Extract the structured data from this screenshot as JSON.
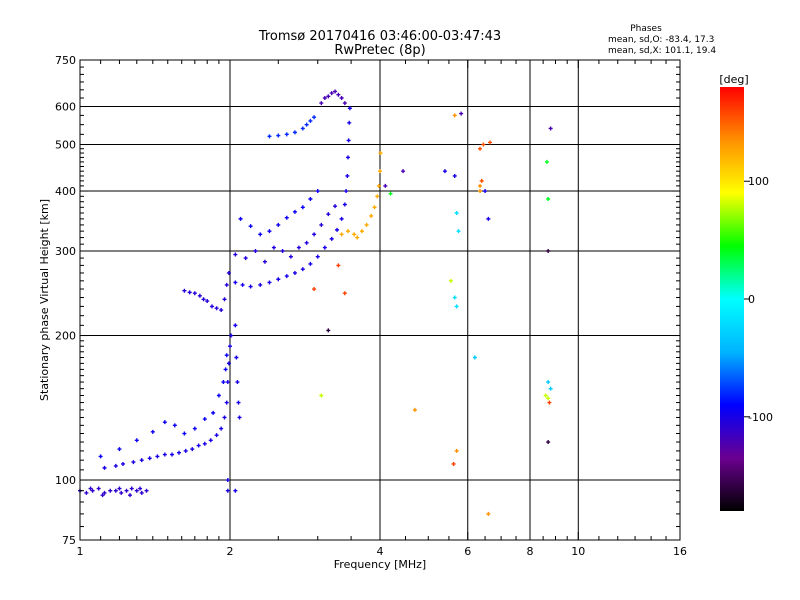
{
  "chart_data": {
    "type": "scatter",
    "title": "Tromsø 20170416 03:46:00-03:47:43",
    "subtitle": "RwPretec (8p)",
    "xlabel": "Frequency [MHz]",
    "ylabel": "Stationary phase Virtual Height [km]",
    "x_scale": "log",
    "y_scale": "log",
    "xlim": [
      1,
      16
    ],
    "ylim": [
      75,
      750
    ],
    "x_ticks": [
      1,
      2,
      4,
      6,
      8,
      10,
      16
    ],
    "x_tick_labels": [
      "1",
      "2",
      "4",
      "6",
      "8",
      "10",
      "16"
    ],
    "y_ticks": [
      75,
      100,
      200,
      300,
      400,
      500,
      600,
      750
    ],
    "y_tick_labels": [
      "75",
      "100",
      "200",
      "300",
      "400",
      "500",
      "600",
      "750"
    ],
    "grid": true,
    "stats": {
      "heading": "Phases",
      "line1": "mean, sd,O: -83.4, 17.3",
      "line2": "mean, sd,X: 101.1, 19.4"
    },
    "colorbar": {
      "label": "[deg]",
      "range": [
        -180,
        180
      ],
      "ticks": [
        100,
        0,
        -100
      ],
      "tick_labels": [
        "100",
        "0",
        "-100"
      ],
      "colors": [
        "#000000",
        "#6a0090",
        "#0000ff",
        "#00b4ff",
        "#00ffff",
        "#00ff00",
        "#ffff00",
        "#ff9000",
        "#ff0000"
      ]
    },
    "series": [
      {
        "phase": -110,
        "points": [
          [
            1.0,
            95
          ],
          [
            1.03,
            94
          ],
          [
            1.06,
            95
          ],
          [
            1.09,
            96
          ],
          [
            1.12,
            94
          ],
          [
            1.15,
            95
          ],
          [
            1.18,
            95
          ],
          [
            1.21,
            94
          ],
          [
            1.24,
            95
          ],
          [
            1.27,
            96
          ],
          [
            1.3,
            95
          ],
          [
            1.33,
            94
          ],
          [
            1.36,
            95
          ],
          [
            1.05,
            96
          ],
          [
            1.11,
            93
          ],
          [
            1.2,
            96
          ],
          [
            1.26,
            93
          ],
          [
            1.32,
            96
          ]
        ]
      },
      {
        "phase": -100,
        "points": [
          [
            1.12,
            106
          ],
          [
            1.18,
            107
          ],
          [
            1.22,
            108
          ],
          [
            1.28,
            109
          ],
          [
            1.33,
            110
          ],
          [
            1.38,
            111
          ],
          [
            1.43,
            112
          ],
          [
            1.48,
            113
          ],
          [
            1.53,
            113
          ],
          [
            1.58,
            114
          ],
          [
            1.63,
            115
          ],
          [
            1.68,
            116
          ],
          [
            1.73,
            118
          ],
          [
            1.78,
            119
          ],
          [
            1.83,
            121
          ],
          [
            1.88,
            124
          ],
          [
            1.92,
            128
          ],
          [
            1.95,
            135
          ],
          [
            1.97,
            145
          ],
          [
            1.98,
            160
          ],
          [
            1.99,
            175
          ],
          [
            2.0,
            190
          ],
          [
            2.01,
            200
          ]
        ]
      },
      {
        "phase": -95,
        "points": [
          [
            1.1,
            112
          ],
          [
            1.2,
            116
          ],
          [
            1.3,
            121
          ],
          [
            1.4,
            126
          ],
          [
            1.48,
            132
          ],
          [
            1.55,
            130
          ],
          [
            1.62,
            125
          ],
          [
            1.7,
            128
          ],
          [
            1.78,
            134
          ],
          [
            1.85,
            138
          ],
          [
            1.9,
            150
          ],
          [
            1.94,
            160
          ],
          [
            1.96,
            170
          ],
          [
            1.97,
            182
          ]
        ]
      },
      {
        "phase": -105,
        "points": [
          [
            1.62,
            248
          ],
          [
            1.66,
            246
          ],
          [
            1.7,
            245
          ],
          [
            1.74,
            242
          ],
          [
            1.77,
            238
          ],
          [
            1.8,
            236
          ],
          [
            1.84,
            230
          ],
          [
            1.88,
            228
          ],
          [
            1.92,
            226
          ],
          [
            1.95,
            238
          ],
          [
            1.97,
            255
          ],
          [
            1.99,
            270
          ]
        ]
      },
      {
        "phase": -100,
        "points": [
          [
            2.05,
            258
          ],
          [
            2.12,
            255
          ],
          [
            2.2,
            253
          ],
          [
            2.3,
            255
          ],
          [
            2.4,
            258
          ],
          [
            2.5,
            262
          ],
          [
            2.6,
            266
          ],
          [
            2.7,
            270
          ],
          [
            2.8,
            275
          ],
          [
            2.9,
            282
          ],
          [
            3.0,
            292
          ],
          [
            3.1,
            305
          ],
          [
            3.2,
            318
          ],
          [
            3.28,
            332
          ],
          [
            3.35,
            350
          ],
          [
            3.4,
            375
          ],
          [
            3.42,
            400
          ],
          [
            3.44,
            430
          ],
          [
            3.45,
            470
          ],
          [
            3.46,
            510
          ],
          [
            3.47,
            555
          ],
          [
            3.48,
            595
          ]
        ]
      },
      {
        "phase": -105,
        "points": [
          [
            2.05,
            295
          ],
          [
            2.15,
            290
          ],
          [
            2.25,
            300
          ],
          [
            2.35,
            285
          ],
          [
            2.45,
            305
          ],
          [
            2.55,
            300
          ],
          [
            2.65,
            292
          ],
          [
            2.75,
            305
          ],
          [
            2.85,
            312
          ],
          [
            2.95,
            325
          ],
          [
            3.05,
            340
          ],
          [
            3.15,
            358
          ],
          [
            3.25,
            372
          ]
        ]
      },
      {
        "phase": -95,
        "points": [
          [
            2.1,
            350
          ],
          [
            2.2,
            338
          ],
          [
            2.3,
            325
          ],
          [
            2.4,
            330
          ],
          [
            2.5,
            340
          ],
          [
            2.6,
            352
          ],
          [
            2.7,
            362
          ],
          [
            2.8,
            370
          ],
          [
            2.9,
            385
          ],
          [
            3.0,
            400
          ]
        ]
      },
      {
        "phase": -80,
        "points": [
          [
            2.4,
            520
          ],
          [
            2.5,
            522
          ],
          [
            2.6,
            525
          ],
          [
            2.7,
            530
          ],
          [
            2.8,
            540
          ],
          [
            2.85,
            550
          ],
          [
            2.9,
            560
          ],
          [
            2.95,
            570
          ]
        ]
      },
      {
        "phase": -120,
        "points": [
          [
            3.05,
            610
          ],
          [
            3.1,
            625
          ],
          [
            3.15,
            630
          ],
          [
            3.2,
            640
          ],
          [
            3.25,
            645
          ],
          [
            3.3,
            635
          ],
          [
            3.35,
            625
          ],
          [
            3.4,
            610
          ]
        ]
      },
      {
        "phase": 125,
        "points": [
          [
            3.35,
            325
          ],
          [
            3.45,
            330
          ],
          [
            3.55,
            325
          ],
          [
            3.6,
            320
          ],
          [
            3.68,
            330
          ],
          [
            3.76,
            340
          ],
          [
            3.84,
            355
          ],
          [
            3.9,
            370
          ],
          [
            3.95,
            390
          ],
          [
            3.98,
            410
          ],
          [
            4.0,
            440
          ],
          [
            4.01,
            480
          ]
        ]
      },
      {
        "phase": -100,
        "points": [
          [
            2.05,
            210
          ],
          [
            2.06,
            180
          ],
          [
            2.07,
            160
          ],
          [
            2.08,
            145
          ],
          [
            2.09,
            135
          ]
        ]
      },
      {
        "phase": -100,
        "points": [
          [
            1.98,
            100
          ],
          [
            1.98,
            95
          ],
          [
            2.05,
            95
          ]
        ]
      },
      {
        "phase": -100,
        "points": [
          [
            5.4,
            440
          ],
          [
            5.65,
            430
          ],
          [
            6.6,
            350
          ],
          [
            6.5,
            400
          ]
        ]
      },
      {
        "phase": -20,
        "points": [
          [
            5.7,
            360
          ],
          [
            5.75,
            330
          ],
          [
            5.65,
            240
          ],
          [
            5.7,
            230
          ]
        ]
      },
      {
        "phase": 155,
        "points": [
          [
            6.35,
            490
          ],
          [
            6.45,
            500
          ],
          [
            6.4,
            420
          ],
          [
            6.65,
            505
          ]
        ]
      },
      {
        "phase": 135,
        "points": [
          [
            5.65,
            575
          ],
          [
            6.35,
            400
          ],
          [
            6.35,
            410
          ],
          [
            4.7,
            140
          ],
          [
            5.7,
            115
          ],
          [
            6.6,
            85
          ]
        ]
      },
      {
        "phase": -120,
        "points": [
          [
            5.82,
            580
          ],
          [
            8.8,
            540
          ],
          [
            4.45,
            440
          ],
          [
            4.1,
            410
          ]
        ]
      },
      {
        "phase": 160,
        "points": [
          [
            5.62,
            108
          ],
          [
            3.3,
            280
          ],
          [
            3.4,
            245
          ],
          [
            2.95,
            250
          ],
          [
            8.75,
            145
          ]
        ]
      },
      {
        "phase": 80,
        "points": [
          [
            8.6,
            150
          ],
          [
            8.7,
            148
          ],
          [
            3.05,
            150
          ],
          [
            5.55,
            260
          ]
        ]
      },
      {
        "phase": -30,
        "points": [
          [
            8.7,
            160
          ],
          [
            8.8,
            155
          ],
          [
            6.2,
            180
          ]
        ]
      },
      {
        "phase": -160,
        "points": [
          [
            8.7,
            120
          ],
          [
            8.7,
            300
          ],
          [
            3.15,
            205
          ]
        ]
      },
      {
        "phase": 40,
        "points": [
          [
            8.7,
            385
          ],
          [
            8.65,
            460
          ],
          [
            4.2,
            395
          ]
        ]
      }
    ]
  }
}
